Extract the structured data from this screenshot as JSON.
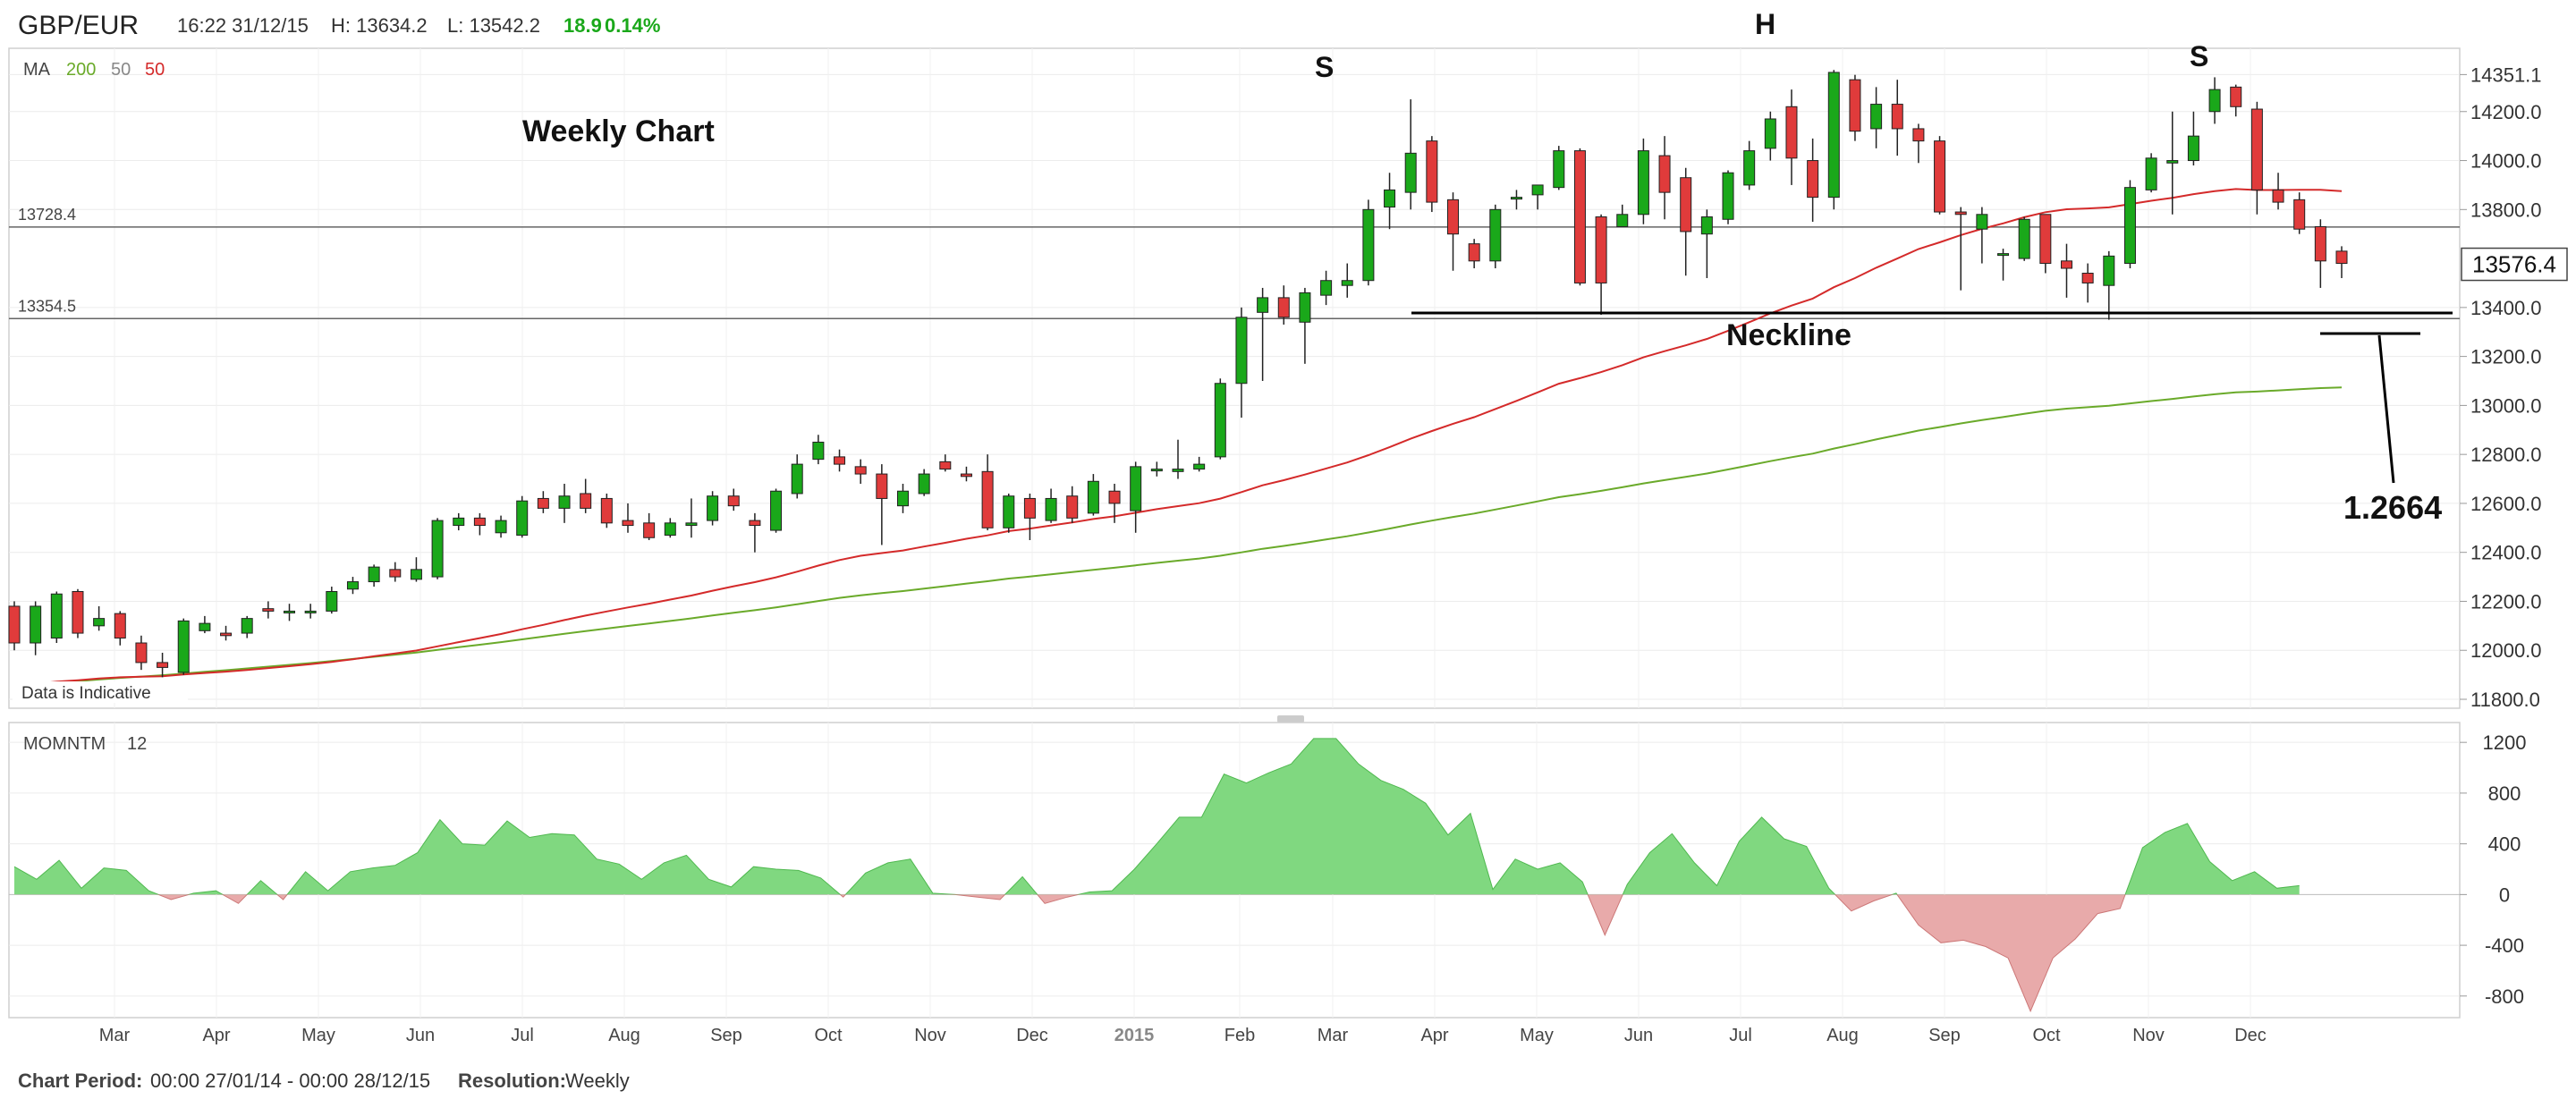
{
  "header": {
    "symbol": "GBP/EUR",
    "datetime": "16:22 31/12/15",
    "high": "H: 13634.2",
    "low": "L: 13542.2",
    "change": "18.9",
    "change_pct": "0.14%"
  },
  "indicators": {
    "ma_label": "MA",
    "ma_values": [
      "200",
      "50",
      "50"
    ],
    "momentum_label": "MOMNTM",
    "momentum_period": "12",
    "disclaimer": "Data is Indicative"
  },
  "footer": {
    "period_label": "Chart Period:",
    "period_value": "00:00 27/01/14 - 00:00 28/12/15",
    "resolution_label": "Resolution:",
    "resolution_value": "Weekly"
  },
  "annotations": {
    "title": "Weekly Chart",
    "left_shoulder": "S",
    "head": "H",
    "right_shoulder": "S",
    "neckline": "Neckline",
    "target": "1.2664"
  },
  "colors": {
    "up": "#1aa81a",
    "down": "#e03b3b",
    "ma50": "#d42a2a",
    "ma200": "#6aaa2a",
    "momentum_pos": "#80d880",
    "momentum_neg": "#e8aaaa",
    "change": "#1aa81a"
  },
  "chart_data": [
    {
      "type": "candlestick",
      "ylim": [
        11800,
        14400
      ],
      "y_ticks": [
        "14351.1",
        "14200.0",
        "14000.0",
        "13800.0",
        "13576.4",
        "13400.0",
        "13200.0",
        "13000.0",
        "12800.0",
        "12600.0",
        "12400.0",
        "12200.0",
        "12000.0",
        "11800.0"
      ],
      "x_ticks": [
        "Mar",
        "Apr",
        "May",
        "Jun",
        "Jul",
        "Aug",
        "Sep",
        "Oct",
        "Nov",
        "Dec",
        "2015",
        "Feb",
        "Mar",
        "Apr",
        "May",
        "Jun",
        "Jul",
        "Aug",
        "Sep",
        "Oct",
        "Nov",
        "Dec"
      ],
      "last_price": "13576.4",
      "levels": [
        {
          "label": "13728.4",
          "value": 13728.4
        },
        {
          "label": "13354.5",
          "value": 13354.5
        }
      ],
      "candles": [
        [
          12180,
          12030,
          12200,
          12000
        ],
        [
          12030,
          12180,
          12200,
          11980
        ],
        [
          12050,
          12230,
          12240,
          12030
        ],
        [
          12240,
          12070,
          12250,
          12050
        ],
        [
          12100,
          12130,
          12180,
          12080
        ],
        [
          12150,
          12050,
          12160,
          12020
        ],
        [
          12030,
          11950,
          12060,
          11920
        ],
        [
          11950,
          11930,
          11990,
          11890
        ],
        [
          11910,
          12120,
          12130,
          11900
        ],
        [
          12080,
          12110,
          12140,
          12070
        ],
        [
          12070,
          12060,
          12100,
          12040
        ],
        [
          12070,
          12130,
          12140,
          12050
        ],
        [
          12170,
          12160,
          12200,
          12130
        ],
        [
          12160,
          12160,
          12190,
          12120
        ],
        [
          12160,
          12160,
          12190,
          12130
        ],
        [
          12160,
          12240,
          12260,
          12150
        ],
        [
          12250,
          12280,
          12300,
          12230
        ],
        [
          12280,
          12340,
          12350,
          12260
        ],
        [
          12330,
          12300,
          12360,
          12280
        ],
        [
          12290,
          12330,
          12380,
          12280
        ],
        [
          12300,
          12530,
          12540,
          12290
        ],
        [
          12510,
          12540,
          12560,
          12490
        ],
        [
          12540,
          12510,
          12560,
          12470
        ],
        [
          12480,
          12530,
          12550,
          12460
        ],
        [
          12470,
          12610,
          12630,
          12460
        ],
        [
          12620,
          12580,
          12650,
          12560
        ],
        [
          12580,
          12630,
          12680,
          12520
        ],
        [
          12640,
          12580,
          12700,
          12560
        ],
        [
          12620,
          12520,
          12640,
          12500
        ],
        [
          12530,
          12510,
          12600,
          12480
        ],
        [
          12520,
          12460,
          12560,
          12450
        ],
        [
          12470,
          12520,
          12540,
          12460
        ],
        [
          12510,
          12520,
          12620,
          12460
        ],
        [
          12530,
          12630,
          12650,
          12510
        ],
        [
          12630,
          12590,
          12660,
          12570
        ],
        [
          12530,
          12510,
          12560,
          12400
        ],
        [
          12490,
          12650,
          12660,
          12480
        ],
        [
          12640,
          12760,
          12800,
          12620
        ],
        [
          12780,
          12850,
          12880,
          12760
        ],
        [
          12790,
          12760,
          12820,
          12730
        ],
        [
          12750,
          12720,
          12780,
          12680
        ],
        [
          12720,
          12620,
          12760,
          12430
        ],
        [
          12590,
          12650,
          12680,
          12560
        ],
        [
          12640,
          12720,
          12740,
          12630
        ],
        [
          12770,
          12740,
          12800,
          12730
        ],
        [
          12720,
          12710,
          12750,
          12690
        ],
        [
          12730,
          12500,
          12800,
          12490
        ],
        [
          12500,
          12630,
          12640,
          12480
        ],
        [
          12620,
          12540,
          12640,
          12450
        ],
        [
          12530,
          12620,
          12660,
          12520
        ],
        [
          12630,
          12540,
          12670,
          12520
        ],
        [
          12560,
          12690,
          12720,
          12550
        ],
        [
          12650,
          12600,
          12680,
          12520
        ],
        [
          12570,
          12750,
          12770,
          12480
        ],
        [
          12740,
          12740,
          12770,
          12710
        ],
        [
          12730,
          12740,
          12860,
          12700
        ],
        [
          12740,
          12760,
          12790,
          12730
        ],
        [
          12790,
          13090,
          13110,
          12780
        ],
        [
          13090,
          13360,
          13400,
          12950
        ],
        [
          13380,
          13440,
          13480,
          13100
        ],
        [
          13440,
          13360,
          13490,
          13330
        ],
        [
          13340,
          13460,
          13480,
          13170
        ],
        [
          13450,
          13510,
          13550,
          13410
        ],
        [
          13490,
          13510,
          13580,
          13440
        ],
        [
          13510,
          13800,
          13840,
          13490
        ],
        [
          13810,
          13880,
          13950,
          13720
        ],
        [
          13870,
          14030,
          14250,
          13800
        ],
        [
          14080,
          13830,
          14100,
          13790
        ],
        [
          13840,
          13700,
          13870,
          13550
        ],
        [
          13660,
          13590,
          13680,
          13560
        ],
        [
          13590,
          13800,
          13820,
          13560
        ],
        [
          13850,
          13850,
          13880,
          13800
        ],
        [
          13860,
          13900,
          13900,
          13800
        ],
        [
          13890,
          14040,
          14060,
          13880
        ],
        [
          14040,
          13500,
          14050,
          13490
        ],
        [
          13770,
          13500,
          13780,
          13370
        ],
        [
          13730,
          13780,
          13820,
          13730
        ],
        [
          13780,
          14040,
          14090,
          13740
        ],
        [
          14020,
          13870,
          14100,
          13760
        ],
        [
          13930,
          13710,
          13970,
          13530
        ],
        [
          13700,
          13770,
          13800,
          13520
        ],
        [
          13760,
          13950,
          13960,
          13740
        ],
        [
          13900,
          14040,
          14080,
          13880
        ],
        [
          14050,
          14170,
          14200,
          14000
        ],
        [
          14220,
          14010,
          14290,
          13900
        ],
        [
          14000,
          13850,
          14090,
          13750
        ],
        [
          13850,
          14360,
          14370,
          13800
        ],
        [
          14330,
          14120,
          14350,
          14080
        ],
        [
          14130,
          14230,
          14300,
          14050
        ],
        [
          14230,
          14130,
          14330,
          14020
        ],
        [
          14130,
          14080,
          14150,
          13990
        ],
        [
          14080,
          13790,
          14100,
          13780
        ],
        [
          13790,
          13780,
          13810,
          13470
        ],
        [
          13720,
          13780,
          13810,
          13580
        ],
        [
          13620,
          13620,
          13640,
          13510
        ],
        [
          13600,
          13760,
          13770,
          13590
        ],
        [
          13780,
          13580,
          13780,
          13540
        ],
        [
          13590,
          13560,
          13660,
          13440
        ],
        [
          13540,
          13500,
          13580,
          13420
        ],
        [
          13490,
          13610,
          13630,
          13350
        ],
        [
          13580,
          13890,
          13920,
          13560
        ],
        [
          13880,
          14010,
          14030,
          13870
        ],
        [
          13990,
          14000,
          14200,
          13780
        ],
        [
          14000,
          14100,
          14200,
          13980
        ],
        [
          14200,
          14290,
          14340,
          14150
        ],
        [
          14300,
          14220,
          14310,
          14180
        ],
        [
          14210,
          13880,
          14240,
          13780
        ],
        [
          13880,
          13830,
          13950,
          13800
        ],
        [
          13840,
          13720,
          13870,
          13700
        ],
        [
          13730,
          13590,
          13760,
          13480
        ],
        [
          13630,
          13580,
          13650,
          13520
        ]
      ]
    },
    {
      "type": "area",
      "ylim": [
        -900,
        1300
      ],
      "y_ticks": [
        "1200",
        "800",
        "400",
        "0",
        "-400",
        "-800"
      ],
      "series": [
        {
          "values": [
            220,
            120,
            270,
            50,
            210,
            190,
            30,
            -40,
            10,
            30,
            -70,
            110,
            -40,
            180,
            30,
            180,
            210,
            230,
            330,
            590,
            400,
            390,
            580,
            450,
            480,
            470,
            280,
            240,
            120,
            250,
            310,
            120,
            60,
            220,
            200,
            190,
            130,
            -20,
            170,
            250,
            280,
            10,
            0,
            -20,
            -40,
            140,
            -70,
            -20,
            20,
            30,
            200,
            400,
            610,
            610,
            950,
            880,
            960,
            1030,
            1230,
            1230,
            1030,
            900,
            830,
            720,
            470,
            640,
            40,
            280,
            200,
            250,
            100,
            -320,
            80,
            330,
            480,
            250,
            70,
            420,
            610,
            440,
            380,
            50,
            -130,
            -50,
            10,
            -240,
            -380,
            -360,
            -410,
            -500,
            -920,
            -500,
            -350,
            -150,
            -110,
            370,
            490,
            560,
            260,
            110,
            180,
            50,
            70
          ]
        }
      ]
    }
  ]
}
